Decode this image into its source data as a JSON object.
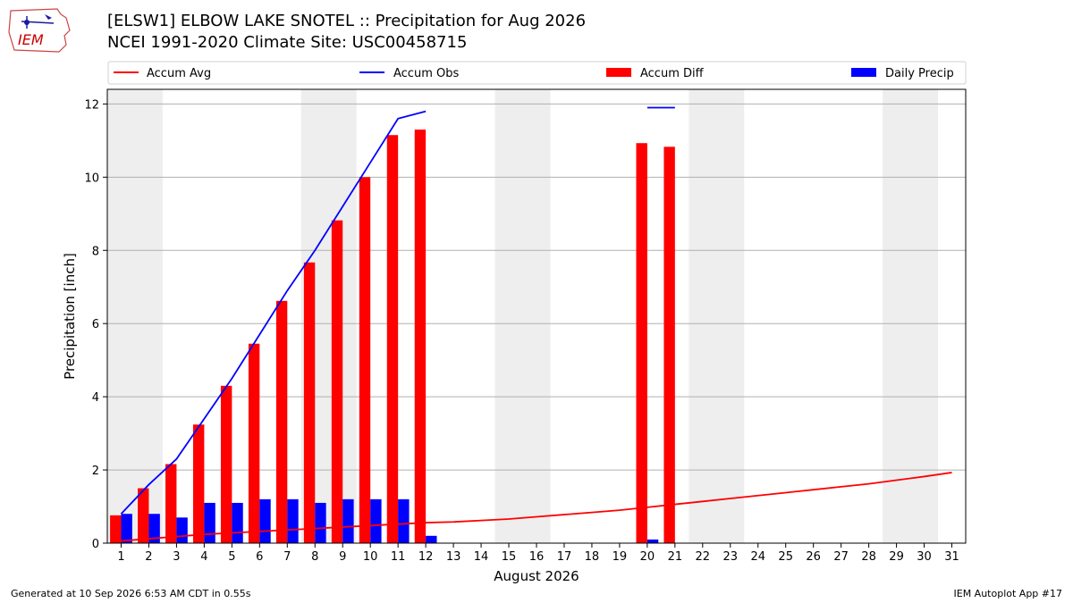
{
  "title_line1": "[ELSW1] ELBOW LAKE SNOTEL :: Precipitation for Aug 2026",
  "title_line2": "NCEI 1991-2020 Climate Site: USC00458715",
  "logo_text": "IEM",
  "footer_left": "Generated at 10 Sep 2026 6:53 AM CDT in 0.55s",
  "footer_right": "IEM Autoplot App #17",
  "colors": {
    "avg": "#ff0000",
    "obs": "#0000ff",
    "diff": "#ff0000",
    "daily": "#0000ff",
    "weekend": "#eeeeee",
    "grid": "#b0b0b0"
  },
  "chart_data": {
    "type": "bar",
    "xlabel": "August 2026",
    "ylabel": "Precipitation [inch]",
    "ylim": [
      0,
      12.4
    ],
    "yticks": [
      0,
      2,
      4,
      6,
      8,
      10,
      12
    ],
    "grid": "horizontal",
    "legend_placement": "top (above plot)",
    "legend": [
      "Accum Avg",
      "Accum Obs",
      "Accum Diff",
      "Daily Precip"
    ],
    "x": [
      1,
      2,
      3,
      4,
      5,
      6,
      7,
      8,
      9,
      10,
      11,
      12,
      13,
      14,
      15,
      16,
      17,
      18,
      19,
      20,
      21,
      22,
      23,
      24,
      25,
      26,
      27,
      28,
      29,
      30,
      31
    ],
    "shaded_days": [
      [
        1,
        2
      ],
      [
        8,
        9
      ],
      [
        15,
        16
      ],
      [
        22,
        23
      ],
      [
        29,
        30
      ]
    ],
    "series": [
      {
        "name": "Accum Avg",
        "kind": "line",
        "values": [
          0.06,
          0.12,
          0.18,
          0.24,
          0.28,
          0.32,
          0.36,
          0.4,
          0.44,
          0.48,
          0.52,
          0.56,
          0.58,
          0.62,
          0.66,
          0.72,
          0.78,
          0.84,
          0.9,
          0.98,
          1.06,
          1.14,
          1.22,
          1.3,
          1.38,
          1.46,
          1.54,
          1.62,
          1.72,
          1.82,
          1.93
        ]
      },
      {
        "name": "Accum Obs",
        "kind": "line",
        "values": [
          0.8,
          1.6,
          2.3,
          3.4,
          4.5,
          5.7,
          6.9,
          8.0,
          9.2,
          10.4,
          11.6,
          11.8,
          null,
          null,
          null,
          null,
          null,
          null,
          null,
          11.9,
          11.9,
          null,
          null,
          null,
          null,
          null,
          null,
          null,
          null,
          null,
          null
        ]
      },
      {
        "name": "Accum Diff",
        "kind": "bar",
        "values": [
          0.76,
          1.5,
          2.16,
          3.24,
          4.3,
          5.45,
          6.62,
          7.67,
          8.82,
          10.0,
          11.15,
          11.3,
          null,
          null,
          null,
          null,
          null,
          null,
          null,
          10.93,
          10.83,
          null,
          null,
          null,
          null,
          null,
          null,
          null,
          null,
          null,
          null
        ]
      },
      {
        "name": "Daily Precip",
        "kind": "bar",
        "values": [
          0.8,
          0.8,
          0.7,
          1.1,
          1.1,
          1.2,
          1.2,
          1.1,
          1.2,
          1.2,
          1.2,
          0.2,
          null,
          null,
          null,
          null,
          null,
          null,
          null,
          0.1,
          0.0,
          null,
          null,
          null,
          null,
          null,
          null,
          null,
          null,
          null,
          null
        ]
      }
    ]
  }
}
